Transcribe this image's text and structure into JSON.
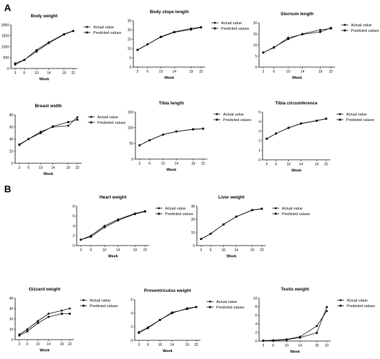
{
  "panels": [
    "A",
    "B"
  ],
  "legend": {
    "actual": "Actual value",
    "predicted": "Predicted values"
  },
  "chart_data": [
    {
      "type": "line",
      "title": "Body weight",
      "xlabel": "Week",
      "ylabel": "",
      "x": [
        3,
        6,
        10,
        14,
        19,
        22
      ],
      "yticks": [
        0,
        500,
        1000,
        1500,
        2000
      ],
      "ylim": [
        0,
        2000
      ],
      "legend_position": "right",
      "series": [
        {
          "name": "Actual value",
          "values": [
            180,
            390,
            850,
            1200,
            1580,
            1730
          ]
        },
        {
          "name": "Predicted values",
          "values": [
            230,
            400,
            780,
            1170,
            1560,
            1720
          ]
        }
      ]
    },
    {
      "type": "line",
      "title": "Body slope length",
      "xlabel": "Week",
      "ylabel": "",
      "x": [
        3,
        6,
        10,
        14,
        19,
        22
      ],
      "yticks": [
        0,
        5,
        10,
        15,
        20,
        25
      ],
      "ylim": [
        0,
        25
      ],
      "legend_position": "right",
      "series": [
        {
          "name": "Actual value",
          "values": [
            9.2,
            12.2,
            16.4,
            19.0,
            20.8,
            21.6
          ]
        },
        {
          "name": "Predicted values",
          "values": [
            9.3,
            12.3,
            16.2,
            18.8,
            20.3,
            21.4
          ]
        }
      ]
    },
    {
      "type": "line",
      "title": "Sternum length",
      "xlabel": "Week",
      "ylabel": "",
      "x": [
        3,
        6,
        10,
        14,
        19,
        22
      ],
      "yticks": [
        0,
        5,
        10,
        15,
        20
      ],
      "ylim": [
        0,
        20
      ],
      "legend_position": "right",
      "series": [
        {
          "name": "Actual value",
          "values": [
            6.5,
            9.0,
            12.6,
            15.0,
            16.8,
            17.4
          ]
        },
        {
          "name": "Predicted values",
          "values": [
            6.6,
            8.8,
            13.2,
            14.8,
            15.9,
            17.7
          ]
        }
      ]
    },
    {
      "type": "line",
      "title": "Breast width",
      "xlabel": "Week",
      "ylabel": "",
      "x": [
        3,
        6,
        10,
        14,
        19,
        22
      ],
      "yticks": [
        0,
        20,
        40,
        60,
        80
      ],
      "ylim": [
        0,
        80
      ],
      "legend_position": "right",
      "series": [
        {
          "name": "Actual value",
          "values": [
            30,
            40,
            52,
            60,
            62,
            76
          ]
        },
        {
          "name": "Predicted values",
          "values": [
            31,
            40,
            50,
            61,
            68,
            72
          ]
        }
      ]
    },
    {
      "type": "line",
      "title": "Tibia length",
      "xlabel": "Week",
      "ylabel": "",
      "x": [
        3,
        6,
        10,
        14,
        19,
        22
      ],
      "yticks": [
        0,
        50,
        100,
        150
      ],
      "ylim": [
        0,
        150
      ],
      "legend_position": "right",
      "series": [
        {
          "name": "Actual value",
          "values": [
            44,
            60,
            78,
            88,
            95,
            97
          ]
        },
        {
          "name": "Predicted values",
          "values": [
            44,
            60,
            78,
            88,
            95,
            97
          ]
        }
      ]
    },
    {
      "type": "line",
      "title": "Tibia circumference",
      "xlabel": "Week",
      "ylabel": "",
      "x": [
        3,
        6,
        10,
        14,
        19,
        22
      ],
      "yticks": [
        0,
        1,
        2,
        3,
        4,
        5
      ],
      "ylim": [
        0,
        5
      ],
      "legend_position": "right",
      "series": [
        {
          "name": "Actual value",
          "values": [
            2.2,
            2.75,
            3.35,
            3.8,
            4.1,
            4.3
          ]
        },
        {
          "name": "Predicted values",
          "values": [
            2.2,
            2.75,
            3.35,
            3.8,
            4.1,
            4.3
          ]
        }
      ]
    },
    {
      "type": "line",
      "title": "Heart weight",
      "xlabel": "Week",
      "ylabel": "",
      "x": [
        3,
        6,
        10,
        14,
        19,
        22
      ],
      "yticks": [
        0,
        2,
        4,
        6,
        8
      ],
      "ylim": [
        0,
        8
      ],
      "legend_position": "right",
      "series": [
        {
          "name": "Actual value",
          "values": [
            1.2,
            2.0,
            4.0,
            5.3,
            6.5,
            7.0
          ]
        },
        {
          "name": "Predicted values",
          "values": [
            1.2,
            1.8,
            3.7,
            5.1,
            6.4,
            6.9
          ]
        }
      ]
    },
    {
      "type": "line",
      "title": "Liver weight",
      "xlabel": "Week",
      "ylabel": "",
      "x": [
        3,
        6,
        10,
        14,
        19,
        22
      ],
      "yticks": [
        0,
        10,
        20,
        30
      ],
      "ylim": [
        0,
        30
      ],
      "legend_position": "right",
      "series": [
        {
          "name": "Actual value",
          "values": [
            5,
            9,
            16,
            22,
            27,
            28
          ]
        },
        {
          "name": "Predicted values",
          "values": [
            5,
            9,
            16,
            22,
            27,
            28
          ]
        }
      ]
    },
    {
      "type": "line",
      "title": "Gizzard weight",
      "xlabel": "Week",
      "ylabel": "",
      "x": [
        3,
        6,
        10,
        14,
        19,
        22
      ],
      "yticks": [
        0,
        10,
        20,
        30,
        40
      ],
      "ylim": [
        0,
        40
      ],
      "legend_position": "right",
      "series": [
        {
          "name": "Actual value",
          "values": [
            5,
            10,
            18,
            25,
            28,
            30
          ]
        },
        {
          "name": "Predicted values",
          "values": [
            4,
            8,
            16,
            22,
            25,
            25
          ]
        }
      ]
    },
    {
      "type": "line",
      "title": "Proventriculus weight",
      "xlabel": "Week",
      "ylabel": "",
      "x": [
        3,
        6,
        10,
        14,
        19,
        22
      ],
      "yticks": [
        0,
        2,
        4,
        6
      ],
      "ylim": [
        0,
        6
      ],
      "legend_position": "right",
      "series": [
        {
          "name": "Actual value",
          "values": [
            1.2,
            1.9,
            3.0,
            4.1,
            4.6,
            4.9
          ]
        },
        {
          "name": "Predicted values",
          "values": [
            1.1,
            1.8,
            3.0,
            4.0,
            4.7,
            4.9
          ]
        }
      ]
    },
    {
      "type": "line",
      "title": "Testis weight",
      "xlabel": "Week",
      "ylabel": "",
      "x": [
        3,
        6,
        10,
        14,
        19,
        22
      ],
      "yticks": [
        0,
        2,
        4,
        6,
        8,
        10
      ],
      "ylim": [
        0,
        10
      ],
      "legend_position": "right",
      "series": [
        {
          "name": "Actual value",
          "values": [
            0.1,
            0.2,
            0.4,
            1.0,
            3.5,
            7.0
          ]
        },
        {
          "name": "Predicted values",
          "values": [
            0.1,
            0.1,
            0.3,
            0.8,
            1.9,
            7.9
          ]
        }
      ]
    }
  ]
}
